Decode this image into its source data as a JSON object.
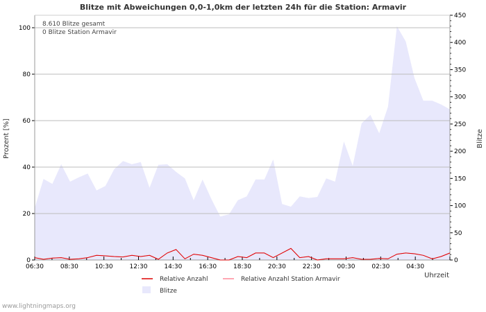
{
  "chart_data": {
    "type": "area",
    "title": "Blitze mit Abweichungen 0,0-1,0km der letzten 24h für die Station: Armavir",
    "info": [
      "8.610 Blitze gesamt",
      "0 Blitze Station Armavir"
    ],
    "ylabel": "Prozent   [%]",
    "y2label": "Blitze",
    "xlabel": "Uhrzeit",
    "ylim": [
      0,
      100
    ],
    "y2lim": [
      0,
      450
    ],
    "yticks": [
      "0",
      "20",
      "40",
      "60",
      "80",
      "100"
    ],
    "y2ticks": [
      "0",
      "50",
      "100",
      "150",
      "200",
      "250",
      "300",
      "350",
      "400",
      "450"
    ],
    "xticks": [
      "06:30",
      "08:30",
      "10:30",
      "12:30",
      "14:30",
      "16:30",
      "18:30",
      "20:30",
      "22:30",
      "00:30",
      "02:30",
      "04:30"
    ],
    "grid": true,
    "legend_placement": "bottom",
    "series": [
      {
        "name": "Relative Anzahl",
        "color": "#dd0000",
        "axis": "left",
        "values": [
          1,
          0.3,
          0.8,
          1,
          0.3,
          0.5,
          1,
          2,
          1.8,
          1.5,
          1.3,
          2,
          1.5,
          2,
          0.3,
          3,
          4.5,
          0.5,
          2.5,
          2,
          1,
          0,
          0,
          1.5,
          1,
          3,
          3,
          1,
          3,
          5,
          1,
          1.5,
          0,
          0.5,
          0.5,
          0.5,
          1,
          0.3,
          0.3,
          0.7,
          0.5,
          2.5,
          3,
          2.7,
          2,
          0.5,
          1.5,
          3
        ]
      },
      {
        "name": "Relative Anzahl Station Armavir",
        "color": "#ff8899",
        "axis": "left",
        "values": [
          1,
          0.3,
          0.8,
          1,
          0.3,
          0.5,
          1,
          2,
          1.8,
          1.5,
          1.3,
          2,
          1.5,
          2,
          0.3,
          3,
          4.5,
          0.5,
          2.5,
          2,
          1,
          0,
          0,
          1.5,
          1,
          3,
          3,
          1,
          3,
          5,
          1,
          1.5,
          0,
          0.5,
          0.5,
          0.5,
          1,
          0.3,
          0.3,
          0.7,
          0.5,
          2.5,
          3,
          2.7,
          2,
          0.5,
          1.5,
          3
        ]
      },
      {
        "name": "Blitze",
        "color": "#e8e8fc",
        "axis": "right",
        "values": [
          96,
          149,
          140,
          176,
          144,
          152,
          159,
          128,
          136,
          167,
          182,
          176,
          180,
          133,
          175,
          176,
          162,
          150,
          110,
          148,
          112,
          80,
          84,
          110,
          117,
          148,
          148,
          185,
          103,
          98,
          117,
          114,
          116,
          150,
          144,
          218,
          173,
          251,
          267,
          233,
          282,
          430,
          402,
          334,
          293,
          293,
          286,
          277
        ]
      }
    ]
  },
  "footer": "www.lightningmaps.org"
}
